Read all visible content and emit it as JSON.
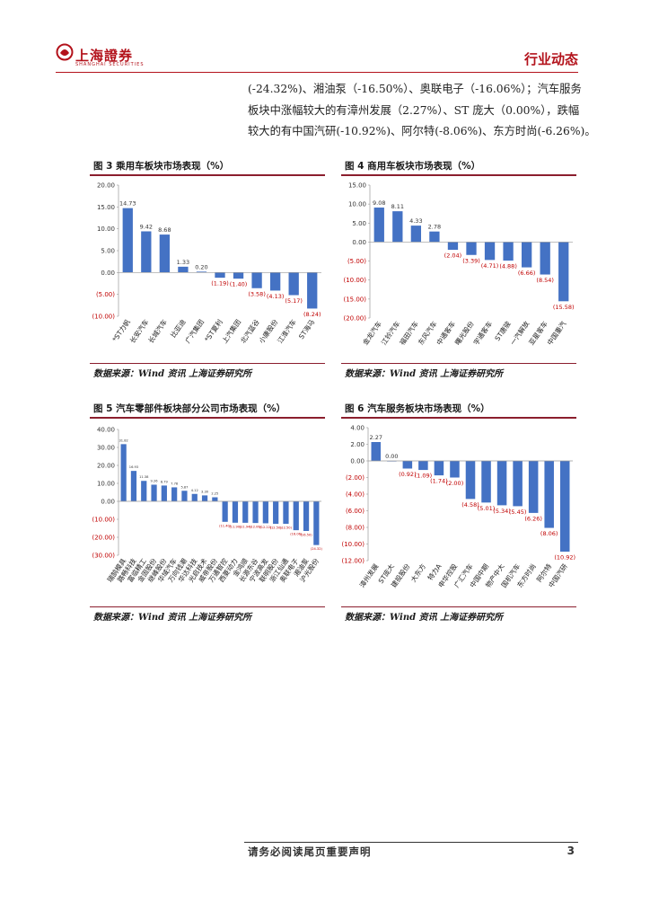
{
  "header": {
    "logo_text": "上海證券",
    "logo_subtext": "SHANGHAI SECURITIES",
    "section_title": "行业动态"
  },
  "body_text": {
    "lines": [
      "(-24.32%)、湘油泵（-16.50%）、奥联电子（-16.06%）；汽车服务",
      "板块中涨幅较大的有漳州发展（2.27%）、ST 庞大（0.00%），跌幅",
      "较大的有中国汽研(-10.92%)、阿尔特(-8.06%)、东方时尚(-6.26%)。"
    ]
  },
  "figures": [
    {
      "title": "图 3 乘用车板块市场表现（%）",
      "source": "数据来源：Wind 资讯 上海证券研究所"
    },
    {
      "title": "图 4 商用车板块市场表现（%）",
      "source": "数据来源：Wind 资讯 上海证券研究所"
    },
    {
      "title": "图 5 汽车零部件板块部分公司市场表现（%）",
      "source": "数据来源：Wind 资讯 上海证券研究所"
    },
    {
      "title": "图 6 汽车服务板块市场表现（%）",
      "source": "数据来源：Wind 资讯 上海证券研究所"
    }
  ],
  "colors": {
    "bar": "#4472c4",
    "negative_label": "#c00000",
    "brand_red": "#b3121b"
  },
  "chart_data": [
    {
      "type": "bar",
      "categories": [
        "*ST力帆",
        "长安汽车",
        "长城汽车",
        "比亚迪",
        "广汽集团",
        "*ST夏利",
        "上汽集团",
        "北汽蓝谷",
        "小康股份",
        "江淮汽车",
        "ST海马"
      ],
      "values": [
        14.73,
        9.42,
        8.68,
        1.33,
        0.2,
        -1.19,
        -1.4,
        -3.58,
        -4.13,
        -5.17,
        -8.24
      ],
      "labels": [
        "14.73",
        "9.42",
        "8.68",
        "1.33",
        "0.20",
        "(1.19)",
        "(1.40)",
        "(3.58)",
        "(4.13)",
        "(5.17)",
        "(8.24)"
      ],
      "yticks": [
        "20.00",
        "15.00",
        "10.00",
        "5.00",
        "0.00",
        "(5.00)",
        "(10.00)"
      ],
      "ylim": [
        -10,
        20
      ]
    },
    {
      "type": "bar",
      "categories": [
        "金龙汽车",
        "江铃汽车",
        "福田汽车",
        "东风汽车",
        "中通客车",
        "曙光股份",
        "宇通客车",
        "ST唐骏",
        "一汽解放",
        "亚星客车",
        "中国重汽"
      ],
      "values": [
        9.08,
        8.11,
        4.33,
        2.78,
        -2.04,
        -3.39,
        -4.71,
        -4.88,
        -6.66,
        -8.54,
        -15.58
      ],
      "labels": [
        "9.08",
        "8.11",
        "4.33",
        "2.78",
        "(2.04)",
        "(3.39)",
        "(4.71)",
        "(4.88)",
        "(6.66)",
        "(8.54)",
        "(15.58)"
      ],
      "yticks": [
        "15.00",
        "10.00",
        "5.00",
        "0.00",
        "(5.00)",
        "(10.00)",
        "(15.00)",
        "(20.00)"
      ],
      "ylim": [
        -20,
        15
      ]
    },
    {
      "type": "bar",
      "categories": [
        "瑞鹄模具",
        "路畅科技",
        "富临精工",
        "金固股份",
        "继峰股份",
        "华域汽车",
        "万向钱潮",
        "华达科技",
        "光启技术",
        "威帝股份",
        "万通智控",
        "西菱动力",
        "金鸿顺",
        "长源东谷",
        "宁波高发",
        "联明股份",
        "浙江仙通",
        "奥联电子",
        "湘油泵",
        "沪光股份"
      ],
      "values": [
        31.82,
        16.93,
        11.38,
        9.26,
        8.79,
        7.78,
        5.87,
        4.12,
        3.3,
        2.25,
        -11.4,
        -11.9,
        -11.94,
        -12.06,
        -12.22,
        -12.5,
        -12.5,
        -16.06,
        -16.5,
        -24.32
      ],
      "labels": [
        "31.82",
        "16.93",
        "11.38",
        "9.26",
        "8.79",
        "7.78",
        "5.87",
        "4.12",
        "3.30",
        "2.25",
        "(11.40)",
        "(11.90)",
        "(11.94)",
        "(12.06)",
        "(12.22)",
        "(12.50)",
        "(12.50)",
        "(16.06)",
        "(16.50)",
        "(24.32)"
      ],
      "yticks": [
        "40.00",
        "30.00",
        "20.00",
        "10.00",
        "0.00",
        "(10.00)",
        "(20.00)",
        "(30.00)"
      ],
      "ylim": [
        -30,
        40
      ]
    },
    {
      "type": "bar",
      "categories": [
        "漳州发展",
        "ST庞大",
        "建投股份",
        "大东方",
        "特力A",
        "申华控股",
        "广汇汽车",
        "中国中期",
        "物产中大",
        "国机汽车",
        "东方时尚",
        "阿尔特",
        "中国汽研"
      ],
      "values": [
        2.27,
        0.0,
        -0.92,
        -1.09,
        -1.74,
        -2.0,
        -4.58,
        -5.01,
        -5.34,
        -5.45,
        -6.26,
        -8.06,
        -10.92
      ],
      "labels": [
        "2.27",
        "0.00",
        "(0.92)",
        "(1.09)",
        "(1.74)",
        "(2.00)",
        "(4.58)",
        "(5.01)",
        "(5.34)",
        "(5.45)",
        "(6.26)",
        "(8.06)",
        "(10.92)"
      ],
      "yticks": [
        "4.00",
        "2.00",
        "0.00",
        "(2.00)",
        "(4.00)",
        "(6.00)",
        "(8.00)",
        "(10.00)",
        "(12.00)"
      ],
      "ylim": [
        -12,
        4
      ]
    }
  ],
  "footer": {
    "disclaimer": "请务必阅读尾页重要声明",
    "page_number": "3"
  }
}
